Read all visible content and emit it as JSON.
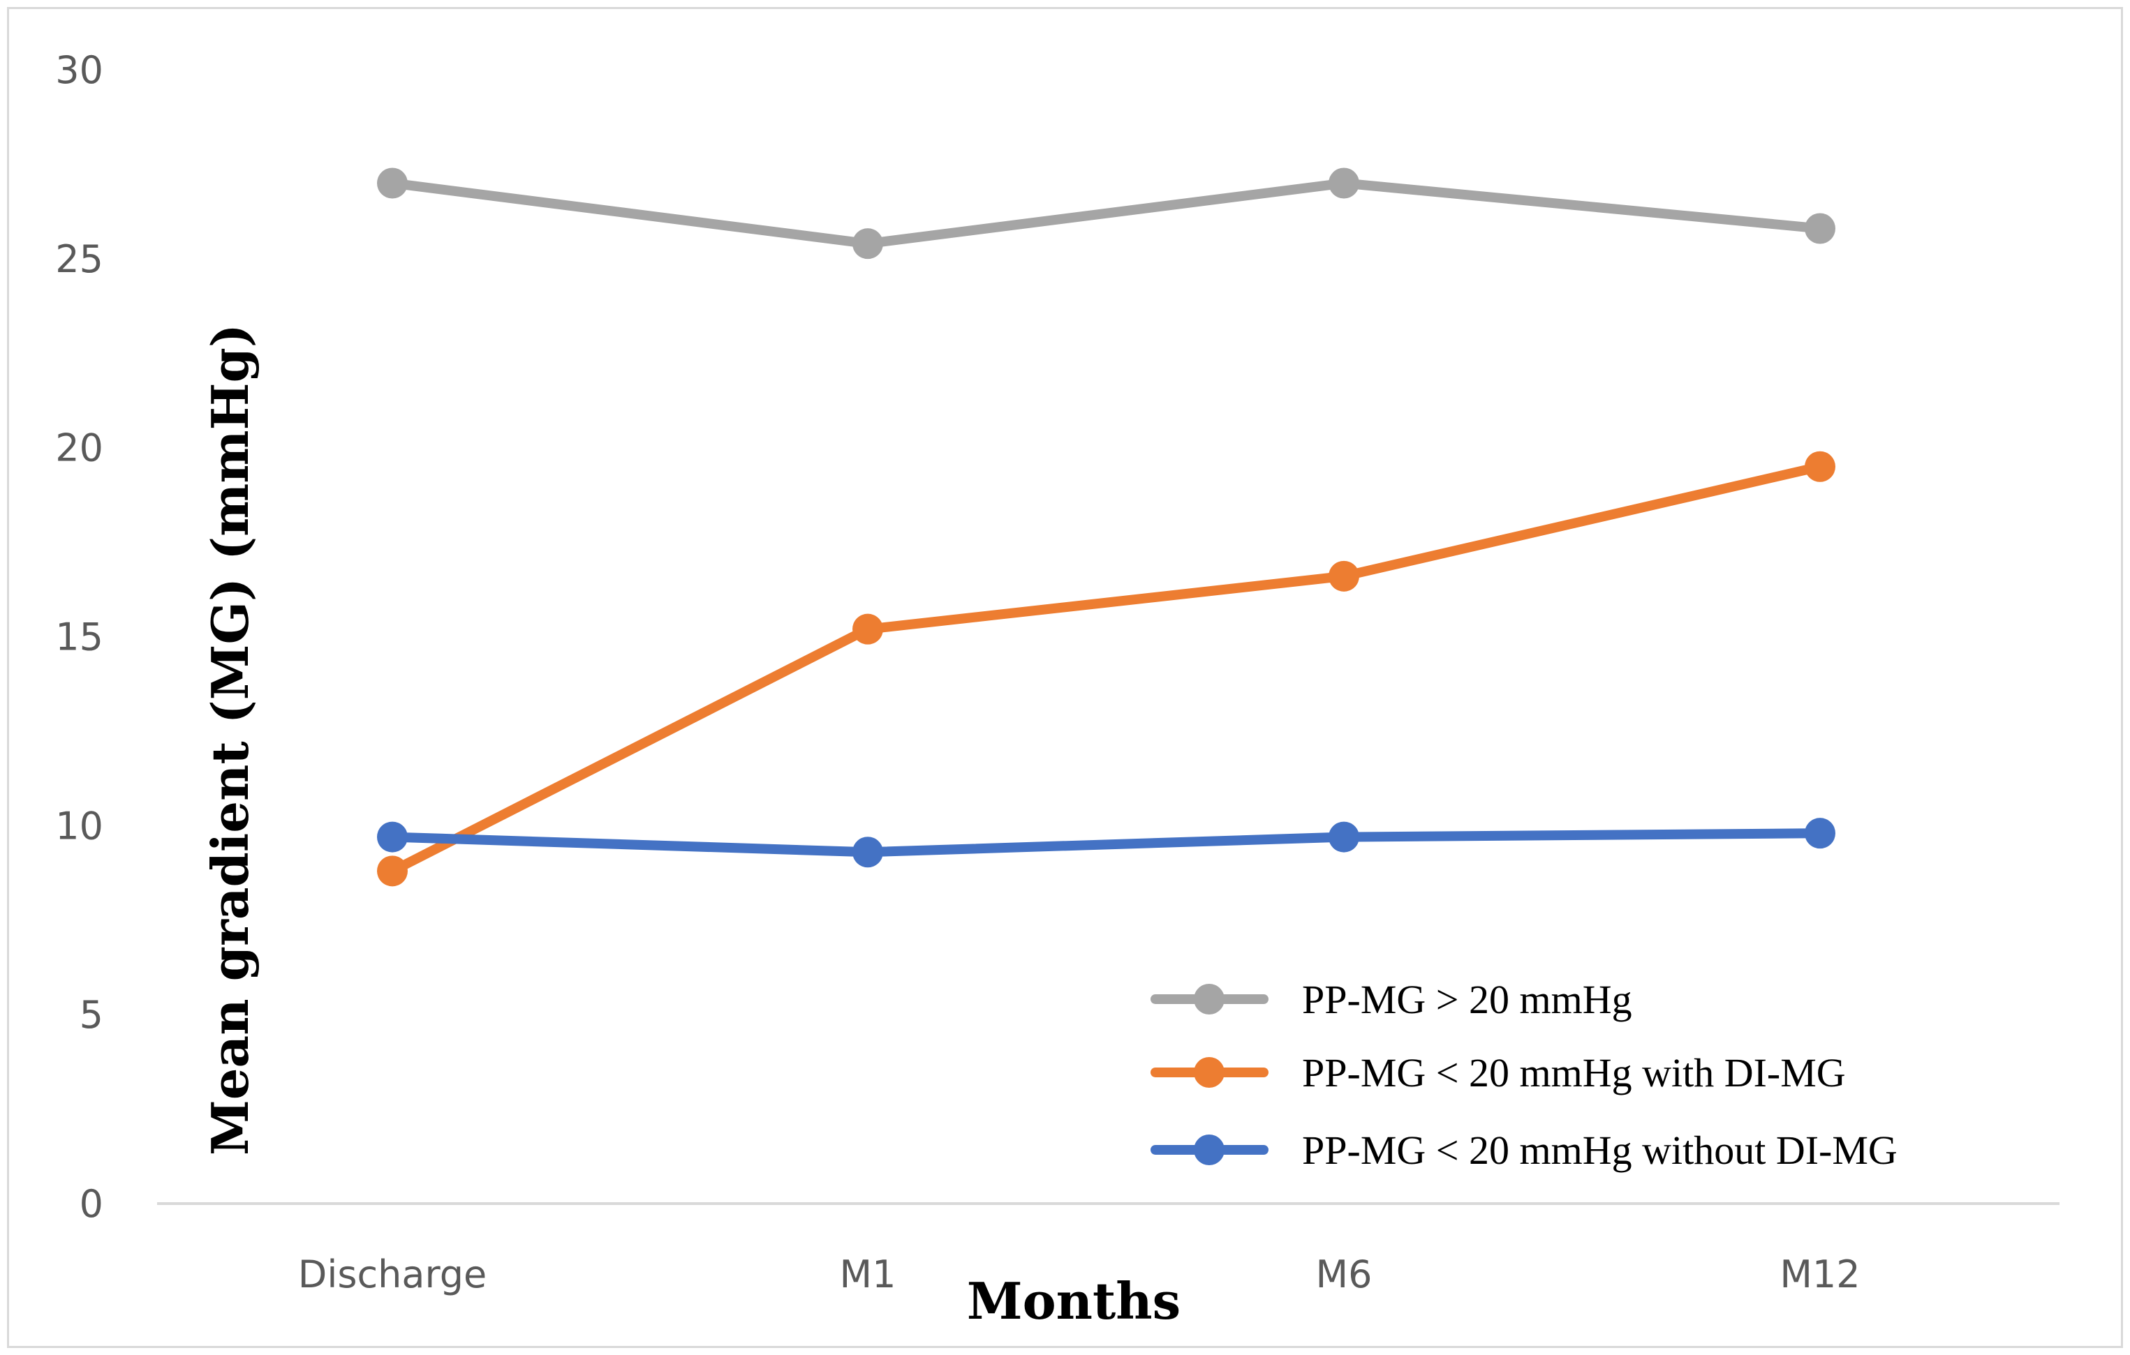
{
  "chart_data": {
    "type": "line",
    "title": "",
    "xlabel": "Months",
    "ylabel": "Mean gradient (MG) (mmHg)",
    "categories": [
      "Discharge",
      "M1",
      "M6",
      "M12"
    ],
    "ylim": [
      0,
      30
    ],
    "yticks": [
      0,
      5,
      10,
      15,
      20,
      25,
      30
    ],
    "grid": false,
    "legend_position": "bottom-right",
    "series": [
      {
        "name": "PP-MG > 20 mmHg",
        "color": "#a5a5a5",
        "values": [
          27.0,
          25.4,
          27.0,
          25.8
        ]
      },
      {
        "name": "PP-MG < 20 mmHg with DI-MG",
        "color": "#ed7d31",
        "values": [
          8.8,
          15.2,
          16.6,
          19.5
        ]
      },
      {
        "name": "PP-MG < 20 mmHg without DI-MG",
        "color": "#4472c4",
        "values": [
          9.7,
          9.3,
          9.7,
          9.8
        ]
      }
    ]
  }
}
